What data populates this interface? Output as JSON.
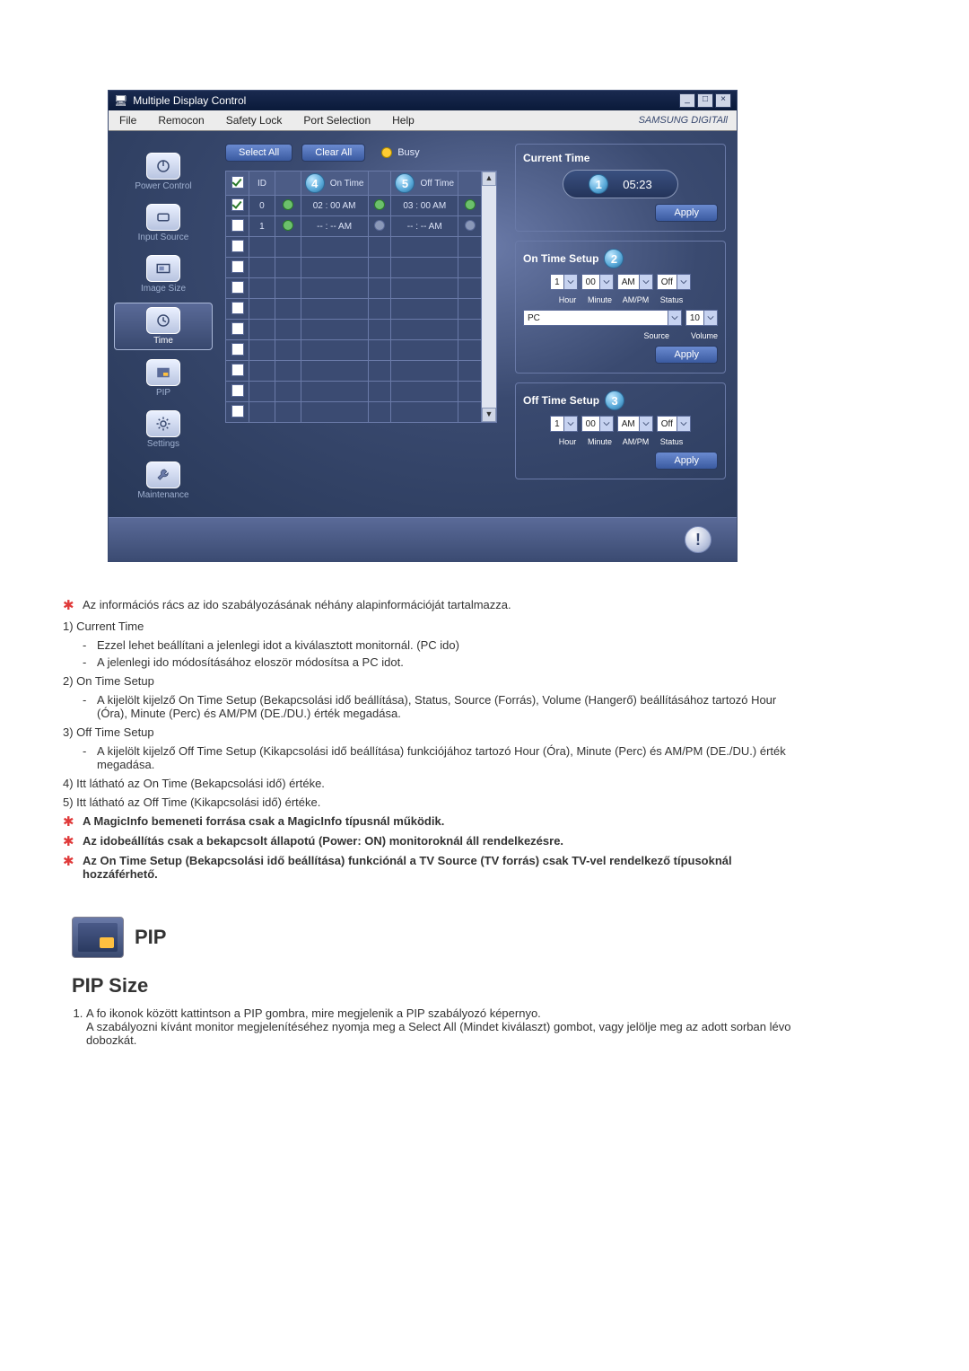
{
  "window": {
    "title": "Multiple Display Control",
    "min": "_",
    "max": "□",
    "close": "×",
    "brand": "SAMSUNG DIGITAll"
  },
  "menubar": [
    "File",
    "Remocon",
    "Safety Lock",
    "Port Selection",
    "Help"
  ],
  "sidebar": [
    {
      "label": "Power Control",
      "name": "power-control-icon"
    },
    {
      "label": "Input Source",
      "name": "input-source-icon"
    },
    {
      "label": "Image Size",
      "name": "image-size-icon"
    },
    {
      "label": "Time",
      "name": "time-icon",
      "active": true
    },
    {
      "label": "PIP",
      "name": "pip-icon"
    },
    {
      "label": "Settings",
      "name": "settings-icon"
    },
    {
      "label": "Maintenance",
      "name": "maintenance-icon"
    }
  ],
  "buttons": {
    "selectAll": "Select All",
    "clearAll": "Clear All",
    "busy": "Busy",
    "apply": "Apply"
  },
  "badges": {
    "currentTime": "1",
    "onTimeSetup": "2",
    "offTimeSetup": "3",
    "onTimeCol": "4",
    "offTimeCol": "5"
  },
  "grid": {
    "headers": {
      "chk": "☑",
      "id": "ID",
      "st": "",
      "onTime": "On Time",
      "offTime": "Off Time"
    },
    "rows": [
      {
        "chk": true,
        "id": "0",
        "st": "g",
        "on": "02 : 00 AM",
        "off": "03 : 00 AM",
        "oi": "g",
        "fi": "g"
      },
      {
        "chk": false,
        "id": "1",
        "st": "g",
        "on": "-- : -- AM",
        "off": "-- : -- AM",
        "oi": "d",
        "fi": "d"
      },
      {
        "chk": false,
        "id": "",
        "st": "",
        "on": "",
        "off": "",
        "oi": "",
        "fi": ""
      },
      {
        "chk": false,
        "id": "",
        "st": "",
        "on": "",
        "off": "",
        "oi": "",
        "fi": ""
      },
      {
        "chk": false,
        "id": "",
        "st": "",
        "on": "",
        "off": "",
        "oi": "",
        "fi": ""
      },
      {
        "chk": false,
        "id": "",
        "st": "",
        "on": "",
        "off": "",
        "oi": "",
        "fi": ""
      },
      {
        "chk": false,
        "id": "",
        "st": "",
        "on": "",
        "off": "",
        "oi": "",
        "fi": ""
      },
      {
        "chk": false,
        "id": "",
        "st": "",
        "on": "",
        "off": "",
        "oi": "",
        "fi": ""
      },
      {
        "chk": false,
        "id": "",
        "st": "",
        "on": "",
        "off": "",
        "oi": "",
        "fi": ""
      },
      {
        "chk": false,
        "id": "",
        "st": "",
        "on": "",
        "off": "",
        "oi": "",
        "fi": ""
      },
      {
        "chk": false,
        "id": "",
        "st": "",
        "on": "",
        "off": "",
        "oi": "",
        "fi": ""
      }
    ]
  },
  "panel": {
    "currentTime": {
      "title": "Current Time",
      "value": "05:23"
    },
    "onTime": {
      "title": "On Time Setup",
      "hour": "1",
      "minute": "00",
      "ampm": "AM",
      "status": "Off",
      "source": "PC",
      "volume": "10",
      "labels": {
        "hour": "Hour",
        "minute": "Minute",
        "ampm": "AM/PM",
        "status": "Status",
        "source": "Source",
        "volume": "Volume"
      }
    },
    "offTime": {
      "title": "Off Time Setup",
      "hour": "1",
      "minute": "00",
      "ampm": "AM",
      "status": "Off",
      "labels": {
        "hour": "Hour",
        "minute": "Minute",
        "ampm": "AM/PM",
        "status": "Status"
      }
    }
  },
  "doc": {
    "intro": "Az információs rács az ido szabályozásának néhány alapinformációját tartalmazza.",
    "items": [
      {
        "n": "1)",
        "title": "Current Time",
        "subs": [
          "Ezzel lehet beállítani a jelenlegi idot a kiválasztott monitornál. (PC ido)",
          "A jelenlegi ido módosításához eloször módosítsa a PC idot."
        ]
      },
      {
        "n": "2)",
        "title": "On Time Setup",
        "subs": [
          "A kijelölt kijelző On Time Setup (Bekapcsolási idő beállítása), Status, Source (Forrás), Volume (Hangerő) beállításához tartozó Hour (Óra), Minute (Perc) és AM/PM (DE./DU.) érték megadása."
        ]
      },
      {
        "n": "3)",
        "title": "Off Time Setup",
        "subs": [
          "A kijelölt kijelző Off Time Setup (Kikapcsolási idő beállítása) funkciójához tartozó Hour (Óra), Minute (Perc) és AM/PM (DE./DU.) érték megadása."
        ]
      },
      {
        "n": "4)",
        "title": "Itt látható az On Time (Bekapcsolási idő) értéke.",
        "subs": []
      },
      {
        "n": "5)",
        "title": "Itt látható az Off Time (Kikapcsolási idő) értéke.",
        "subs": []
      }
    ],
    "notes": [
      "A MagicInfo bemeneti forrása csak a MagicInfo típusnál működik.",
      "Az idobeállítás csak a bekapcsolt állapotú (Power: ON) monitoroknál áll rendelkezésre.",
      "Az On Time Setup (Bekapcsolási idő beállítása) funkciónál a TV Source (TV forrás) csak TV-vel rendelkező típusoknál hozzáférhető."
    ],
    "pipTitle": "PIP",
    "pipSection": "PIP Size",
    "pipSteps": [
      "A fo ikonok között kattintson a PIP gombra, mire megjelenik a PIP szabályozó képernyo.\nA szabályozni kívánt monitor megjelenítéséhez nyomja meg a Select All (Mindet kiválaszt) gombot, vagy jelölje meg az adott sorban lévo dobozkát."
    ]
  },
  "colors": {
    "accent": "#4a6ab0",
    "bgDark": "#2a3a60",
    "highlight": "#ffc040",
    "star": "#e03a3a"
  }
}
